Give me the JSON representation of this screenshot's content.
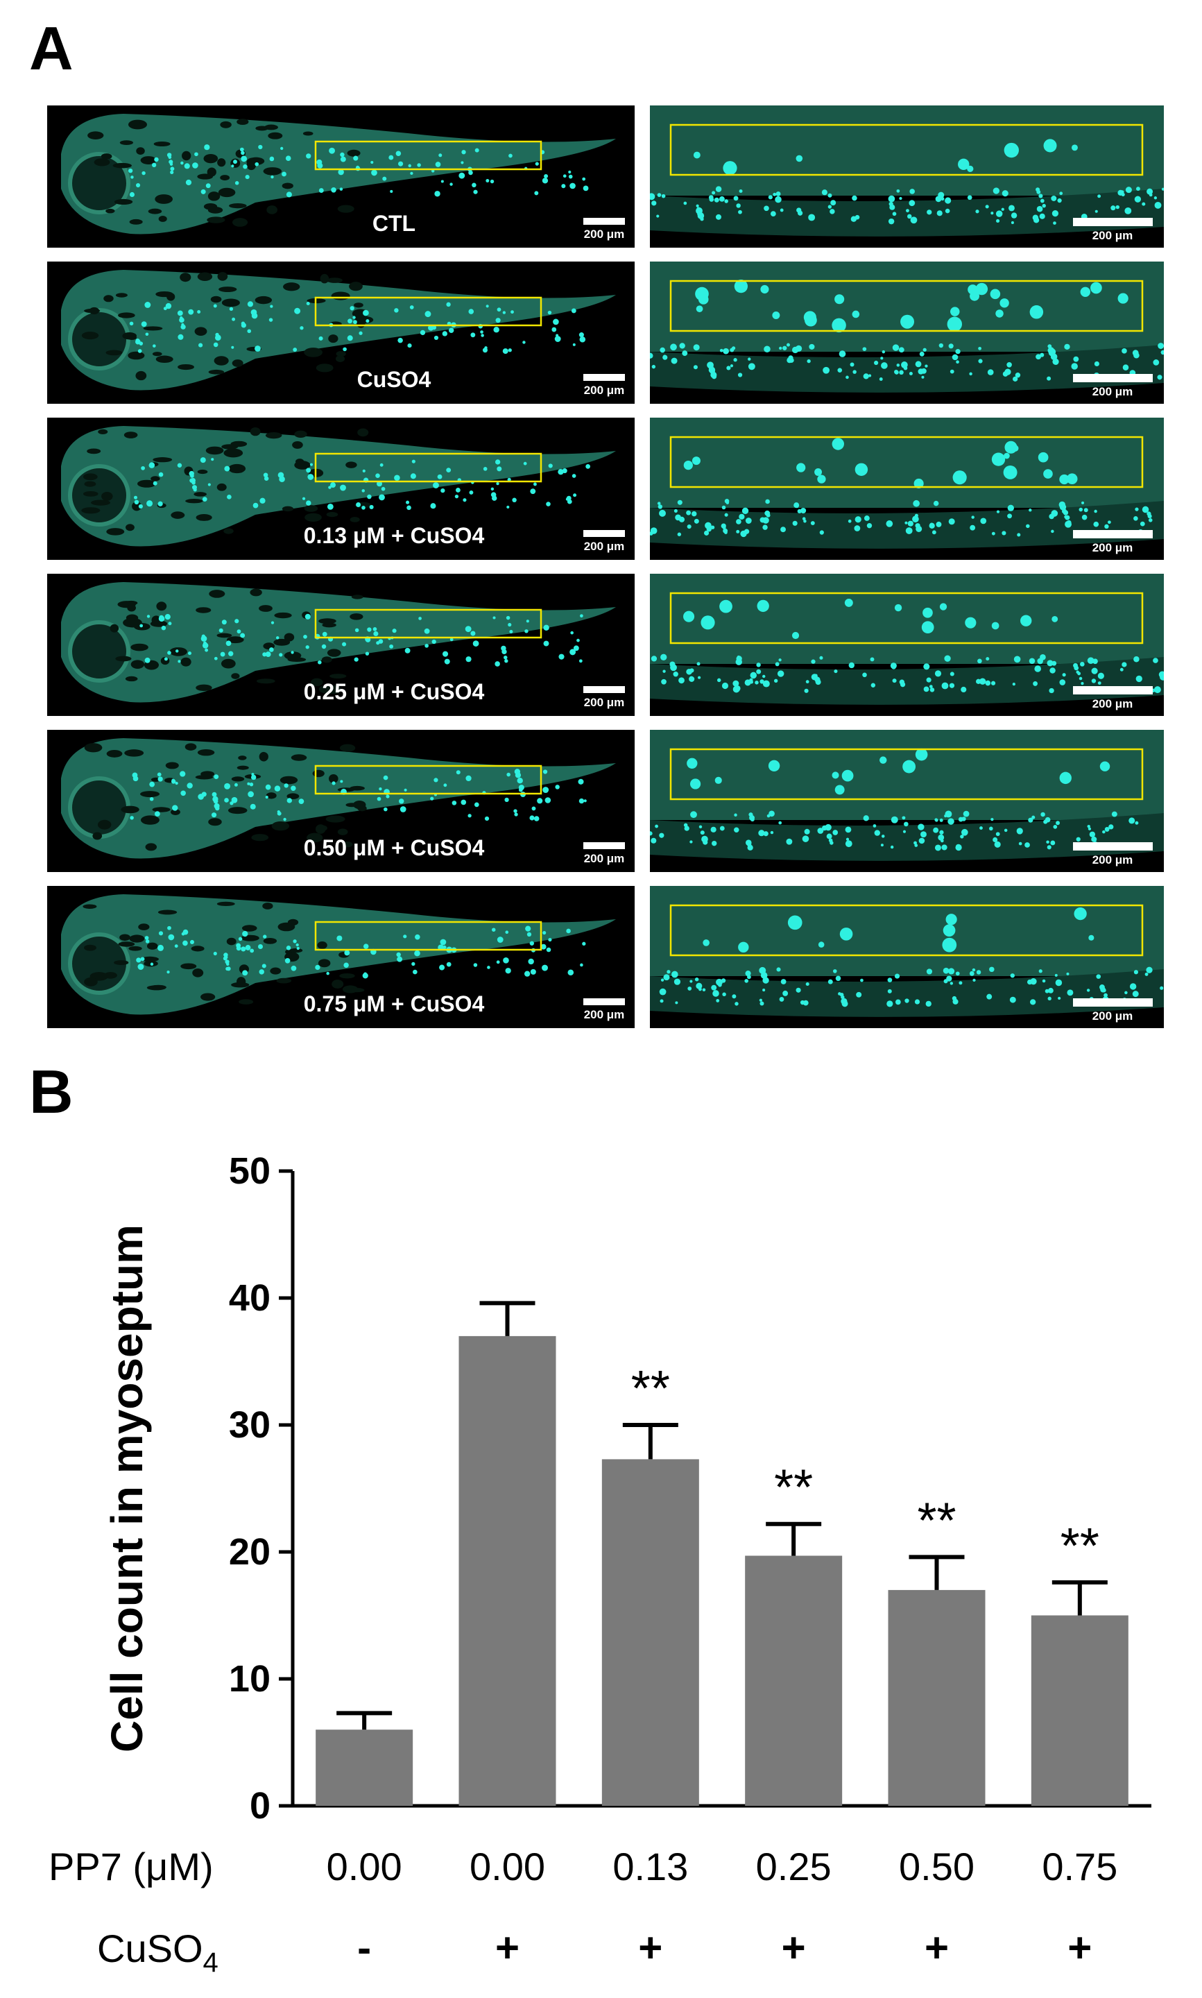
{
  "figure": {
    "panel_a_letter": "A",
    "panel_b_letter": "B"
  },
  "panel_a": {
    "rows": [
      {
        "label": "CTL"
      },
      {
        "label": "CuSO4"
      },
      {
        "label": "0.13 μM + CuSO4"
      },
      {
        "label": "0.25 μM + CuSO4"
      },
      {
        "label": "0.50 μM + CuSO4"
      },
      {
        "label": "0.75 μM + CuSO4"
      }
    ],
    "scale_bar_label": "200 μm",
    "colors": {
      "background": "#000000",
      "tissue": "#1f6b5a",
      "signal": "#2ff0e0",
      "roi_box": "#f2e600"
    },
    "roi_cell_density": [
      1,
      3,
      2.2,
      1.8,
      1.5,
      1.4
    ]
  },
  "chart_data": {
    "type": "bar",
    "categories": [
      "0.00",
      "0.00",
      "0.13",
      "0.25",
      "0.50",
      "0.75"
    ],
    "values": [
      6,
      37,
      27.3,
      19.7,
      17,
      15
    ],
    "errors": [
      1.3,
      2.6,
      2.7,
      2.5,
      2.6,
      2.6
    ],
    "significance": [
      "",
      "",
      "**",
      "**",
      "**",
      "**"
    ],
    "ylabel": "Cell count in myoseptum",
    "ylim": [
      0,
      50
    ],
    "yticks": [
      0,
      10,
      20,
      30,
      40,
      50
    ],
    "grid": false,
    "bar_color": "#7a7a7a",
    "rows": [
      {
        "label": "PP7 (μM)",
        "values": [
          "0.00",
          "0.00",
          "0.13",
          "0.25",
          "0.50",
          "0.75"
        ]
      },
      {
        "label_main": "CuSO",
        "label_sub": "4",
        "values": [
          "-",
          "+",
          "+",
          "+",
          "+",
          "+"
        ]
      }
    ]
  }
}
